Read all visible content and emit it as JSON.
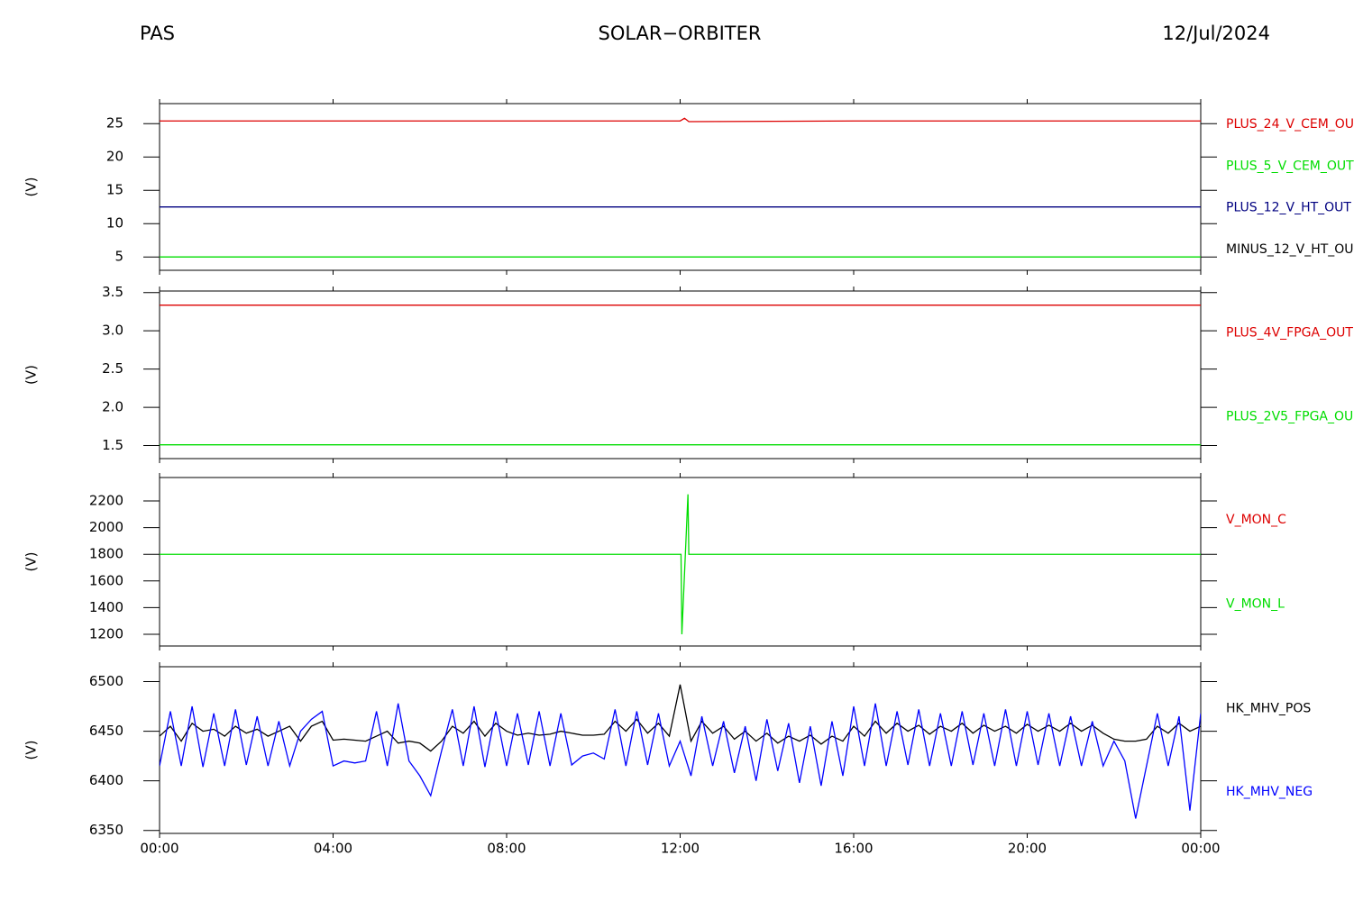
{
  "header": {
    "left": "PAS",
    "center": "SOLAR−ORBITER",
    "right": "12/Jul/2024"
  },
  "chart_data": [
    {
      "type": "line",
      "ylabel": "(V)",
      "xlim": [
        0,
        24
      ],
      "xticks": [
        0,
        4,
        8,
        12,
        16,
        20,
        24
      ],
      "ylim": [
        3,
        28
      ],
      "yticks": [
        5,
        10,
        15,
        20,
        25
      ],
      "x": [
        0,
        4,
        8,
        12,
        12.1,
        12.2,
        16,
        20,
        24
      ],
      "series": [
        {
          "name": "PLUS_24_V_CEM_OU",
          "color": "#dd0000",
          "values": [
            25.4,
            25.4,
            25.4,
            25.4,
            25.8,
            25.3,
            25.4,
            25.4,
            25.4
          ]
        },
        {
          "name": "PLUS_5_V_CEM_OUT",
          "color": "#00dd00",
          "values": [
            5,
            5,
            5,
            5,
            5,
            5,
            5,
            5,
            5
          ]
        },
        {
          "name": "PLUS_12_V_HT_OUT",
          "color": "#000080",
          "values": [
            12.5,
            12.5,
            12.5,
            12.5,
            12.5,
            12.5,
            12.5,
            12.5,
            12.5
          ]
        },
        {
          "name": "MINUS_12_V_HT_OU",
          "color": "#000000",
          "values": [
            null,
            null,
            null,
            null,
            null,
            null,
            null,
            null,
            null
          ]
        }
      ]
    },
    {
      "type": "line",
      "ylabel": "(V)",
      "xlim": [
        0,
        24
      ],
      "xticks": [
        0,
        4,
        8,
        12,
        16,
        20,
        24
      ],
      "ylim": [
        1.33,
        3.52
      ],
      "yticks": [
        1.5,
        {
          "value": 2,
          "label": "2.0"
        },
        2.5,
        {
          "value": 3,
          "label": "3.0"
        },
        3.5
      ],
      "x": [
        0,
        24
      ],
      "series": [
        {
          "name": "PLUS_4V_FPGA_OUT",
          "color": "#dd0000",
          "values": [
            3.335,
            3.335
          ]
        },
        {
          "name": "PLUS_2V5_FPGA_OU",
          "color": "#00dd00",
          "values": [
            1.51,
            1.51
          ]
        }
      ]
    },
    {
      "type": "line",
      "ylabel": "(V)",
      "xlim": [
        0,
        24
      ],
      "xticks": [
        0,
        4,
        8,
        12,
        16,
        20,
        24
      ],
      "ylim": [
        1112,
        2376
      ],
      "yticks": [
        1200,
        1400,
        1600,
        1800,
        2000,
        2200
      ],
      "x": [
        0,
        6,
        12,
        12.02,
        12.04,
        12.18,
        12.2,
        18,
        24
      ],
      "series": [
        {
          "name": "V_MON_C",
          "color": "#dd0000",
          "values": [
            null,
            null,
            null,
            null,
            null,
            null,
            null,
            null,
            null
          ]
        },
        {
          "name": "V_MON_L",
          "color": "#00dd00",
          "values": [
            1800,
            1800,
            1800,
            1800,
            1200,
            2250,
            1800,
            1800,
            1800
          ]
        }
      ]
    },
    {
      "type": "line",
      "ylabel": "(V)",
      "xlim": [
        0,
        24
      ],
      "xticks": [
        {
          "value": 0,
          "label": "00:00"
        },
        {
          "value": 4,
          "label": "04:00"
        },
        {
          "value": 8,
          "label": "08:00"
        },
        {
          "value": 12,
          "label": "12:00"
        },
        {
          "value": 16,
          "label": "16:00"
        },
        {
          "value": 20,
          "label": "20:00"
        },
        {
          "value": 24,
          "label": "00:00"
        }
      ],
      "ylim": [
        6347,
        6515
      ],
      "yticks": [
        6350,
        6400,
        6450,
        6500
      ],
      "x": [
        0,
        0.25,
        0.5,
        0.75,
        1,
        1.25,
        1.5,
        1.75,
        2,
        2.25,
        2.5,
        2.75,
        3,
        3.25,
        3.5,
        3.75,
        4,
        4.25,
        4.5,
        4.75,
        5,
        5.25,
        5.5,
        5.75,
        6,
        6.25,
        6.5,
        6.75,
        7,
        7.25,
        7.5,
        7.75,
        8,
        8.25,
        8.5,
        8.75,
        9,
        9.25,
        9.5,
        9.75,
        10,
        10.25,
        10.5,
        10.75,
        11,
        11.25,
        11.5,
        11.75,
        12,
        12.25,
        12.5,
        12.75,
        13,
        13.25,
        13.5,
        13.75,
        14,
        14.25,
        14.5,
        14.75,
        15,
        15.25,
        15.5,
        15.75,
        16,
        16.25,
        16.5,
        16.75,
        17,
        17.25,
        17.5,
        17.75,
        18,
        18.25,
        18.5,
        18.75,
        19,
        19.25,
        19.5,
        19.75,
        20,
        20.25,
        20.5,
        20.75,
        21,
        21.25,
        21.5,
        21.75,
        22,
        22.25,
        22.5,
        22.75,
        23,
        23.25,
        23.5,
        23.75,
        24
      ],
      "series": [
        {
          "name": "HK_MHV_POS",
          "color": "#000000",
          "values": [
            6445,
            6455,
            6440,
            6458,
            6450,
            6452,
            6445,
            6455,
            6448,
            6452,
            6445,
            6450,
            6455,
            6440,
            6455,
            6460,
            6441,
            6442,
            6441,
            6440,
            6445,
            6450,
            6438,
            6440,
            6438,
            6430,
            6440,
            6455,
            6448,
            6460,
            6445,
            6458,
            6450,
            6446,
            6448,
            6446,
            6447,
            6450,
            6448,
            6446,
            6446,
            6447,
            6460,
            6450,
            6462,
            6448,
            6458,
            6445,
            6497,
            6440,
            6460,
            6448,
            6455,
            6442,
            6450,
            6440,
            6448,
            6438,
            6445,
            6440,
            6446,
            6437,
            6445,
            6440,
            6455,
            6445,
            6460,
            6448,
            6458,
            6450,
            6456,
            6447,
            6455,
            6450,
            6458,
            6448,
            6456,
            6450,
            6455,
            6448,
            6457,
            6450,
            6456,
            6450,
            6458,
            6450,
            6456,
            6448,
            6442,
            6440,
            6440,
            6442,
            6455,
            6448,
            6458,
            6450,
            6455
          ]
        },
        {
          "name": "HK_MHV_NEG",
          "color": "#0000ff",
          "values": [
            6415,
            6470,
            6415,
            6475,
            6414,
            6468,
            6415,
            6472,
            6416,
            6465,
            6415,
            6460,
            6415,
            6450,
            6462,
            6470,
            6415,
            6420,
            6418,
            6420,
            6470,
            6415,
            6478,
            6420,
            6405,
            6385,
            6430,
            6472,
            6415,
            6475,
            6414,
            6470,
            6415,
            6468,
            6416,
            6470,
            6415,
            6468,
            6416,
            6425,
            6428,
            6422,
            6472,
            6415,
            6470,
            6416,
            6468,
            6415,
            6440,
            6405,
            6465,
            6415,
            6460,
            6408,
            6455,
            6400,
            6462,
            6410,
            6458,
            6398,
            6455,
            6395,
            6460,
            6405,
            6475,
            6415,
            6478,
            6415,
            6470,
            6416,
            6472,
            6415,
            6468,
            6415,
            6470,
            6416,
            6468,
            6415,
            6472,
            6415,
            6470,
            6416,
            6468,
            6415,
            6465,
            6415,
            6460,
            6415,
            6440,
            6420,
            6362,
            6415,
            6468,
            6415,
            6465,
            6370,
            6468
          ]
        }
      ]
    }
  ]
}
